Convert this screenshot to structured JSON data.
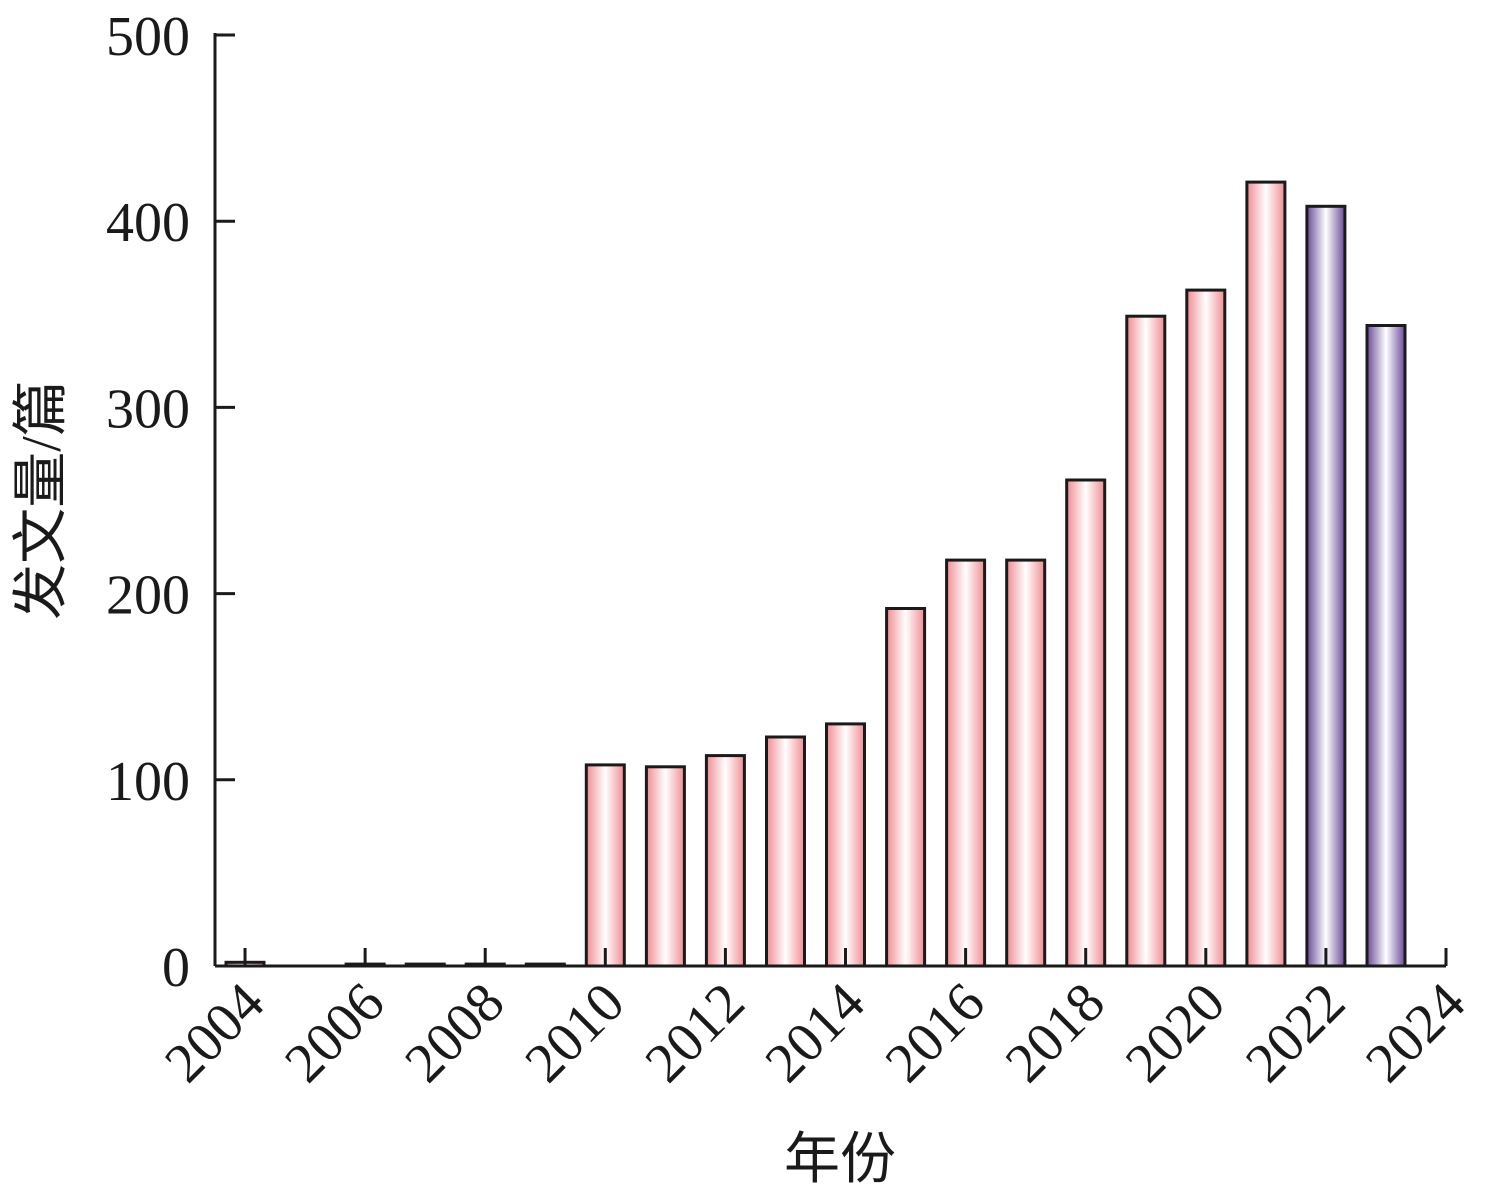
{
  "chart_data": {
    "type": "bar",
    "title": "",
    "xlabel": "年份",
    "ylabel": "发文量/篇",
    "x": [
      2004,
      2005,
      2006,
      2007,
      2008,
      2009,
      2010,
      2011,
      2012,
      2013,
      2014,
      2015,
      2016,
      2017,
      2018,
      2019,
      2020,
      2021,
      2022,
      2023
    ],
    "values": [
      2,
      0,
      1,
      1,
      1,
      1,
      108,
      107,
      113,
      123,
      130,
      192,
      218,
      218,
      261,
      349,
      363,
      421,
      408,
      344
    ],
    "colors": [
      "pink",
      "pink",
      "pink",
      "pink",
      "pink",
      "pink",
      "pink",
      "pink",
      "pink",
      "pink",
      "pink",
      "pink",
      "pink",
      "pink",
      "pink",
      "pink",
      "pink",
      "pink",
      "purple",
      "purple"
    ],
    "xlim": [
      2003.5,
      2024
    ],
    "ylim": [
      0,
      500
    ],
    "xticks": [
      "2004",
      "2006",
      "2008",
      "2010",
      "2012",
      "2014",
      "2016",
      "2018",
      "2020",
      "2022",
      "2024"
    ],
    "yticks": [
      "0",
      "100",
      "200",
      "300",
      "400",
      "500"
    ],
    "grid": false,
    "palette": {
      "pink": "#f08c92",
      "purple": "#6a4a9a",
      "outline": "#1a1a1a"
    }
  }
}
